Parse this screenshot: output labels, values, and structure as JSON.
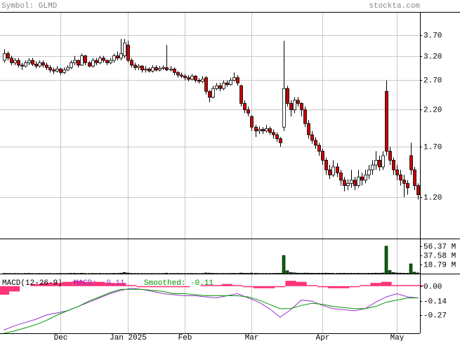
{
  "header": {
    "symbol": "Symbol: GLMD",
    "site": "stockta.com"
  },
  "chart_data": [
    {
      "type": "candlestick",
      "categories": [
        null,
        null,
        null,
        null,
        null,
        null,
        null,
        null,
        null,
        null,
        null,
        null,
        null,
        null,
        null,
        null,
        "Dec",
        null,
        null,
        null,
        null,
        null,
        null,
        null,
        null,
        null,
        null,
        null,
        null,
        null,
        null,
        null,
        null,
        null,
        null,
        "Jan 2025",
        null,
        null,
        null,
        null,
        null,
        null,
        null,
        null,
        null,
        null,
        null,
        null,
        null,
        null,
        null,
        "Feb",
        null,
        null,
        null,
        null,
        null,
        null,
        null,
        null,
        null,
        null,
        null,
        null,
        null,
        null,
        null,
        null,
        null,
        null,
        "Mar",
        null,
        null,
        null,
        null,
        null,
        null,
        null,
        null,
        null,
        null,
        null,
        null,
        null,
        null,
        null,
        null,
        null,
        null,
        null,
        "Apr",
        null,
        null,
        null,
        null,
        null,
        null,
        null,
        null,
        null,
        null,
        null,
        null,
        null,
        null,
        null,
        null,
        null,
        null,
        null,
        null,
        "May",
        null,
        null,
        null,
        null,
        null,
        null
      ],
      "open": [
        3.1,
        3.25,
        3.15,
        3.05,
        3.1,
        3.0,
        2.98,
        3.05,
        3.1,
        3.02,
        2.98,
        3.05,
        3.0,
        2.95,
        2.9,
        2.88,
        2.92,
        2.85,
        2.9,
        2.95,
        3.05,
        3.1,
        3.0,
        3.2,
        3.05,
        2.98,
        3.1,
        3.05,
        3.15,
        3.1,
        3.05,
        3.1,
        3.2,
        3.15,
        3.2,
        3.45,
        3.1,
        3.0,
        2.95,
        2.98,
        2.9,
        2.92,
        2.88,
        2.95,
        2.9,
        2.93,
        2.95,
        2.9,
        2.92,
        2.85,
        2.8,
        2.78,
        2.75,
        2.72,
        2.78,
        2.7,
        2.68,
        2.75,
        2.5,
        2.4,
        2.55,
        2.6,
        2.55,
        2.65,
        2.62,
        2.7,
        2.75,
        2.6,
        2.3,
        2.2,
        2.1,
        1.95,
        1.9,
        1.92,
        1.9,
        1.93,
        1.88,
        1.85,
        1.8,
        1.95,
        2.55,
        2.3,
        2.2,
        2.35,
        2.3,
        2.2,
        2.0,
        1.85,
        1.78,
        1.72,
        1.65,
        1.55,
        1.45,
        1.4,
        1.48,
        1.42,
        1.35,
        1.3,
        1.32,
        1.35,
        1.3,
        1.38,
        1.35,
        1.4,
        1.45,
        1.5,
        1.55,
        1.48,
        2.5,
        1.65,
        1.55,
        1.45,
        1.4,
        1.35,
        1.32,
        1.6,
        1.45,
        1.3
      ],
      "high": [
        3.35,
        3.3,
        3.2,
        3.15,
        3.15,
        3.05,
        3.1,
        3.15,
        3.15,
        3.08,
        3.1,
        3.1,
        3.05,
        3.0,
        2.95,
        2.98,
        2.95,
        2.95,
        3.0,
        3.1,
        3.2,
        3.12,
        3.25,
        3.22,
        3.08,
        3.15,
        3.15,
        3.2,
        3.2,
        3.12,
        3.15,
        3.25,
        3.3,
        3.6,
        3.6,
        3.55,
        3.15,
        3.05,
        3.02,
        3.0,
        2.98,
        2.95,
        3.0,
        3.0,
        2.98,
        3.0,
        3.45,
        2.98,
        2.95,
        2.88,
        2.85,
        2.82,
        2.8,
        2.82,
        2.8,
        2.74,
        2.78,
        2.78,
        2.52,
        2.6,
        2.65,
        2.65,
        2.7,
        2.7,
        2.75,
        2.85,
        2.8,
        2.62,
        2.35,
        2.25,
        2.12,
        1.98,
        1.96,
        1.95,
        1.98,
        1.96,
        1.92,
        1.88,
        1.82,
        3.55,
        2.6,
        2.35,
        2.4,
        2.4,
        2.32,
        2.25,
        2.05,
        1.9,
        1.82,
        1.75,
        1.68,
        1.58,
        1.5,
        1.55,
        1.52,
        1.45,
        1.38,
        1.36,
        1.45,
        1.38,
        1.45,
        1.42,
        1.45,
        1.5,
        1.55,
        1.65,
        1.6,
        1.65,
        2.7,
        1.7,
        1.58,
        1.5,
        1.45,
        1.4,
        1.35,
        1.75,
        1.48,
        1.32
      ],
      "low": [
        3.05,
        3.1,
        3.0,
        3.0,
        2.95,
        2.9,
        2.95,
        3.0,
        2.98,
        2.93,
        2.95,
        2.95,
        2.9,
        2.85,
        2.82,
        2.85,
        2.8,
        2.82,
        2.88,
        2.92,
        3.0,
        2.95,
        2.98,
        3.0,
        2.95,
        2.95,
        3.0,
        3.02,
        3.05,
        3.0,
        3.02,
        3.05,
        3.1,
        3.1,
        3.15,
        3.05,
        2.95,
        2.9,
        2.9,
        2.85,
        2.85,
        2.85,
        2.85,
        2.87,
        2.87,
        2.9,
        2.88,
        2.87,
        2.8,
        2.75,
        2.74,
        2.7,
        2.68,
        2.7,
        2.66,
        2.64,
        2.65,
        2.45,
        2.32,
        2.38,
        2.52,
        2.5,
        2.52,
        2.58,
        2.6,
        2.68,
        2.6,
        2.25,
        2.15,
        2.1,
        1.9,
        1.82,
        1.86,
        1.86,
        1.88,
        1.85,
        1.8,
        1.76,
        1.7,
        1.9,
        2.25,
        2.1,
        2.15,
        2.25,
        2.1,
        1.95,
        1.8,
        1.74,
        1.68,
        1.6,
        1.5,
        1.4,
        1.36,
        1.38,
        1.38,
        1.3,
        1.25,
        1.26,
        1.28,
        1.26,
        1.28,
        1.3,
        1.32,
        1.36,
        1.4,
        1.45,
        1.44,
        1.45,
        1.6,
        1.5,
        1.4,
        1.35,
        1.3,
        1.2,
        1.22,
        1.4,
        1.26,
        1.18
      ],
      "close": [
        3.25,
        3.15,
        3.05,
        3.1,
        3.0,
        2.98,
        3.05,
        3.1,
        3.02,
        2.98,
        3.05,
        3.0,
        2.95,
        2.9,
        2.88,
        2.92,
        2.85,
        2.9,
        2.95,
        3.05,
        3.1,
        3.0,
        3.2,
        3.05,
        2.98,
        3.1,
        3.05,
        3.15,
        3.1,
        3.05,
        3.1,
        3.2,
        3.15,
        3.25,
        3.5,
        3.1,
        3.0,
        2.95,
        2.98,
        2.9,
        2.92,
        2.88,
        2.95,
        2.9,
        2.93,
        2.95,
        2.9,
        2.92,
        2.85,
        2.8,
        2.78,
        2.75,
        2.72,
        2.78,
        2.7,
        2.68,
        2.72,
        2.5,
        2.4,
        2.55,
        2.6,
        2.55,
        2.65,
        2.62,
        2.7,
        2.75,
        2.65,
        2.3,
        2.2,
        2.15,
        1.95,
        1.9,
        1.92,
        1.9,
        1.93,
        1.88,
        1.85,
        1.8,
        1.75,
        2.55,
        2.3,
        2.2,
        2.35,
        2.3,
        2.2,
        2.0,
        1.85,
        1.78,
        1.72,
        1.65,
        1.55,
        1.45,
        1.4,
        1.48,
        1.42,
        1.35,
        1.3,
        1.32,
        1.35,
        1.3,
        1.38,
        1.35,
        1.4,
        1.45,
        1.5,
        1.55,
        1.48,
        1.6,
        1.65,
        1.55,
        1.45,
        1.4,
        1.35,
        1.32,
        1.28,
        1.45,
        1.3,
        1.22
      ],
      "up_color": "#ffffff",
      "down_color": "#cc0000",
      "log_scale": true,
      "ylim": [
        0.9,
        4.34
      ],
      "yticks": [
        {
          "value": 3.7,
          "label": "3.70"
        },
        {
          "value": 3.2,
          "label": "3.20"
        },
        {
          "value": 2.7,
          "label": "2.70"
        },
        {
          "value": 2.2,
          "label": "2.20"
        },
        {
          "value": 1.7,
          "label": "1.70"
        },
        {
          "value": 1.2,
          "label": "1.20"
        }
      ],
      "grid": true
    },
    {
      "type": "bar",
      "color": "#006600",
      "values": [
        0.6,
        0.5,
        0.4,
        0.5,
        0.4,
        0.3,
        0.5,
        0.6,
        0.4,
        0.3,
        0.5,
        0.4,
        0.4,
        0.5,
        0.3,
        0.4,
        0.5,
        0.4,
        0.5,
        0.7,
        0.8,
        0.5,
        0.9,
        0.6,
        0.4,
        0.6,
        0.5,
        0.6,
        0.4,
        0.4,
        0.5,
        0.7,
        0.6,
        1.2,
        2.5,
        1.4,
        0.6,
        0.5,
        0.4,
        0.5,
        0.4,
        0.4,
        0.5,
        0.4,
        0.4,
        0.5,
        1.1,
        0.5,
        0.5,
        0.6,
        0.5,
        0.4,
        0.5,
        0.6,
        0.5,
        0.4,
        0.5,
        1.5,
        1.2,
        0.8,
        0.6,
        0.5,
        0.6,
        0.5,
        0.6,
        0.8,
        0.6,
        1.4,
        1.0,
        0.8,
        1.3,
        0.9,
        0.6,
        0.5,
        0.6,
        0.5,
        0.6,
        0.7,
        0.8,
        37.0,
        6.0,
        2.5,
        1.8,
        1.2,
        1.0,
        1.3,
        1.1,
        0.9,
        0.8,
        0.9,
        1.0,
        1.2,
        0.9,
        0.8,
        0.7,
        0.8,
        0.9,
        0.7,
        0.8,
        0.7,
        0.8,
        0.6,
        0.7,
        0.8,
        0.9,
        1.2,
        1.0,
        1.4,
        56.0,
        6.5,
        2.5,
        1.5,
        1.2,
        1.0,
        0.9,
        20.0,
        3.0,
        1.5
      ],
      "ylim": [
        0,
        70
      ],
      "yticks": [
        {
          "value": 56.37,
          "label": "56.37 M"
        },
        {
          "value": 37.58,
          "label": "37.58 M"
        },
        {
          "value": 18.79,
          "label": "18.79 M"
        }
      ]
    },
    {
      "type": "macd",
      "title": "MACD(12-26-9)",
      "x": [
        0,
        3,
        6,
        9,
        12,
        15,
        18,
        21,
        24,
        27,
        30,
        33,
        36,
        39,
        42,
        45,
        48,
        51,
        54,
        57,
        60,
        63,
        66,
        69,
        72,
        75,
        78,
        81,
        84,
        87,
        90,
        93,
        96,
        99,
        102,
        105,
        108,
        111,
        114,
        117
      ],
      "series": [
        {
          "name": "MACD: -0.11",
          "color": "#9933cc",
          "values": [
            -0.41,
            -0.37,
            -0.34,
            -0.31,
            -0.27,
            -0.25,
            -0.23,
            -0.19,
            -0.15,
            -0.11,
            -0.07,
            -0.04,
            -0.02,
            -0.03,
            -0.05,
            -0.07,
            -0.08,
            -0.09,
            -0.09,
            -0.1,
            -0.11,
            -0.09,
            -0.07,
            -0.11,
            -0.15,
            -0.21,
            -0.29,
            -0.22,
            -0.13,
            -0.14,
            -0.18,
            -0.21,
            -0.22,
            -0.23,
            -0.21,
            -0.15,
            -0.1,
            -0.07,
            -0.1,
            -0.11
          ]
        },
        {
          "name": "Smoothed: -0.11",
          "color": "#009900",
          "values": [
            -0.44,
            -0.42,
            -0.39,
            -0.36,
            -0.32,
            -0.27,
            -0.23,
            -0.19,
            -0.14,
            -0.1,
            -0.06,
            -0.03,
            -0.03,
            -0.03,
            -0.04,
            -0.05,
            -0.07,
            -0.07,
            -0.08,
            -0.09,
            -0.09,
            -0.09,
            -0.09,
            -0.1,
            -0.13,
            -0.17,
            -0.21,
            -0.21,
            -0.18,
            -0.16,
            -0.17,
            -0.19,
            -0.2,
            -0.21,
            -0.21,
            -0.19,
            -0.15,
            -0.13,
            -0.11,
            -0.11
          ]
        }
      ],
      "histogram": {
        "color": "#ff3377",
        "values": [
          -0.08,
          -0.05,
          0.0,
          0.02,
          0.03,
          0.03,
          0.04,
          0.05,
          0.04,
          0.04,
          0.03,
          0.03,
          0.01,
          -0.01,
          -0.01,
          -0.01,
          -0.01,
          -0.01,
          0,
          0.01,
          0.01,
          0.02,
          0.01,
          -0.01,
          -0.02,
          -0.02,
          -0.01,
          0.05,
          0.04,
          0.01,
          -0.01,
          -0.02,
          -0.02,
          -0.01,
          0.01,
          0.03,
          0.04,
          0.01,
          0.01,
          0.01
        ]
      },
      "ylim": [
        -0.44,
        0.11
      ],
      "yticks": [
        {
          "value": 0,
          "label": "0.00"
        },
        -0.14,
        -0.27
      ]
    }
  ]
}
